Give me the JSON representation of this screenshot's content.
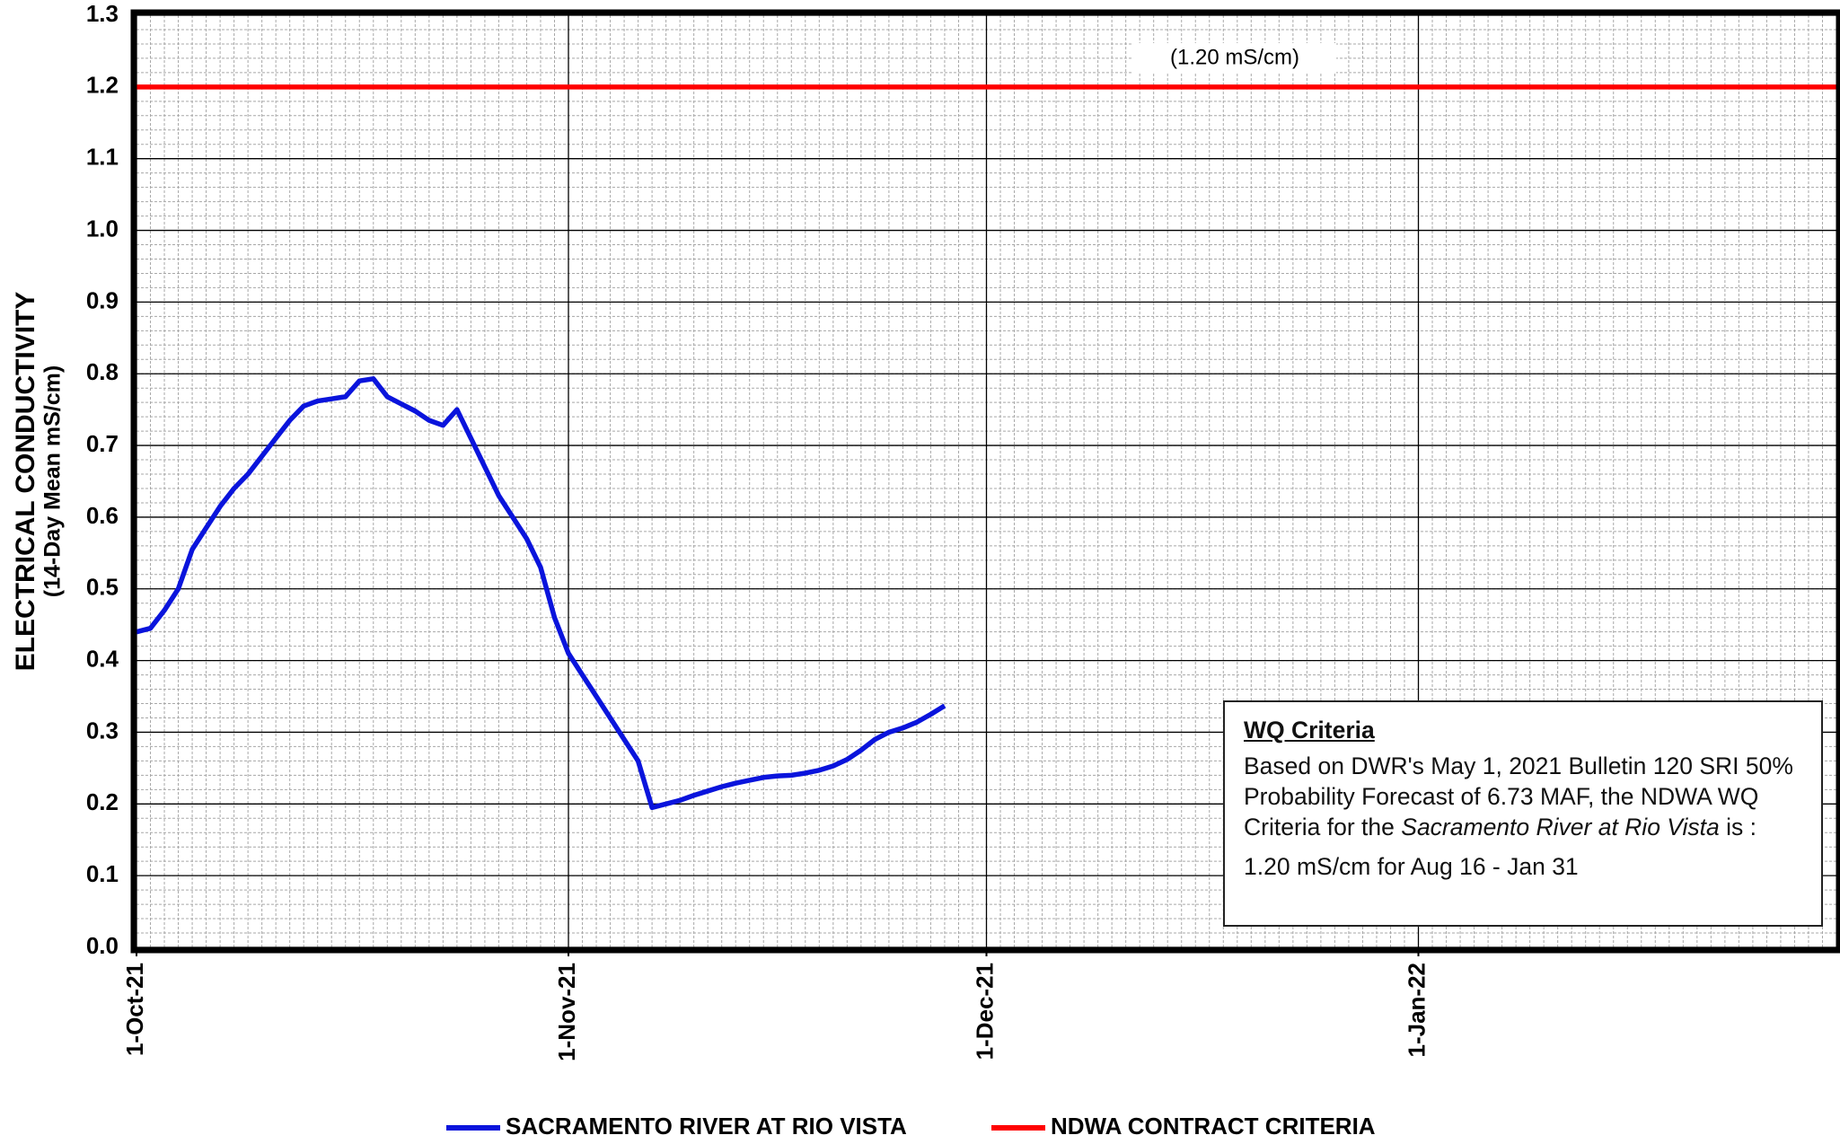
{
  "chart_data": {
    "type": "line",
    "ylabel": "ELECTRICAL CONDUCTIVITY",
    "ylabel_sub": "(14-Day Mean mS/cm)",
    "xlim": [
      "2021-10-01",
      "2022-01-31"
    ],
    "xticks": [
      {
        "value": "2021-10-01",
        "label": "1-Oct-21"
      },
      {
        "value": "2021-11-01",
        "label": "1-Nov-21"
      },
      {
        "value": "2021-12-01",
        "label": "1-Dec-21"
      },
      {
        "value": "2022-01-01",
        "label": "1-Jan-22"
      }
    ],
    "ylim": [
      0,
      1.3
    ],
    "yticks": [
      {
        "value": 0,
        "label": "0.0"
      },
      0.1,
      0.2,
      0.3,
      0.4,
      0.5,
      0.6,
      0.7,
      0.8,
      0.9,
      {
        "value": 1,
        "label": "1.0"
      },
      1.1,
      1.2,
      1.3
    ],
    "grid": true,
    "minor_grid": {
      "x_step_days": 1,
      "y_step": 0.02
    },
    "series": [
      {
        "name": "SACRAMENTO RIVER AT RIO VISTA",
        "color": "#0a14dc",
        "x": [
          "2021-10-01",
          "2021-10-02",
          "2021-10-03",
          "2021-10-04",
          "2021-10-05",
          "2021-10-06",
          "2021-10-07",
          "2021-10-08",
          "2021-10-09",
          "2021-10-10",
          "2021-10-11",
          "2021-10-12",
          "2021-10-13",
          "2021-10-14",
          "2021-10-15",
          "2021-10-16",
          "2021-10-17",
          "2021-10-18",
          "2021-10-19",
          "2021-10-20",
          "2021-10-21",
          "2021-10-22",
          "2021-10-23",
          "2021-10-24",
          "2021-10-25",
          "2021-10-26",
          "2021-10-27",
          "2021-10-28",
          "2021-10-29",
          "2021-10-30",
          "2021-10-31",
          "2021-11-01",
          "2021-11-02",
          "2021-11-03",
          "2021-11-04",
          "2021-11-05",
          "2021-11-06",
          "2021-11-07",
          "2021-11-08",
          "2021-11-09",
          "2021-11-10",
          "2021-11-11",
          "2021-11-12",
          "2021-11-13",
          "2021-11-14",
          "2021-11-15",
          "2021-11-16",
          "2021-11-17",
          "2021-11-18",
          "2021-11-19",
          "2021-11-20",
          "2021-11-21",
          "2021-11-22",
          "2021-11-23",
          "2021-11-24",
          "2021-11-25",
          "2021-11-26",
          "2021-11-27",
          "2021-11-28"
        ],
        "values": [
          0.44,
          0.445,
          0.47,
          0.5,
          0.555,
          0.585,
          0.615,
          0.64,
          0.66,
          0.685,
          0.71,
          0.735,
          0.755,
          0.762,
          0.765,
          0.768,
          0.79,
          0.793,
          0.768,
          0.758,
          0.748,
          0.735,
          0.728,
          0.75,
          0.71,
          0.67,
          0.63,
          0.6,
          0.57,
          0.53,
          0.46,
          0.41,
          0.38,
          0.35,
          0.32,
          0.29,
          0.26,
          0.195,
          0.2,
          0.205,
          0.212,
          0.218,
          0.224,
          0.229,
          0.233,
          0.237,
          0.239,
          0.24,
          0.243,
          0.247,
          0.253,
          0.262,
          0.275,
          0.29,
          0.3,
          0.306,
          0.314,
          0.325,
          0.337
        ]
      },
      {
        "name": "NDWA CONTRACT CRITERIA",
        "color": "#ff0000",
        "x": [
          "2021-10-01",
          "2022-01-31"
        ],
        "values": [
          1.2,
          1.2
        ]
      }
    ],
    "annotation": "(1.20 mS/cm)",
    "text_box": {
      "title": "WQ Criteria",
      "body": [
        {
          "text": "Based on DWR's May 1, 2021 Bulletin 120 SRI 50% Probability Forecast of 6.73 MAF, the NDWA WQ Criteria for the "
        },
        {
          "text": "Sacramento River at Rio Vista",
          "italic": true
        },
        {
          "text": " is :"
        }
      ],
      "note": "1.20 mS/cm for Aug 16 - Jan 31"
    }
  }
}
